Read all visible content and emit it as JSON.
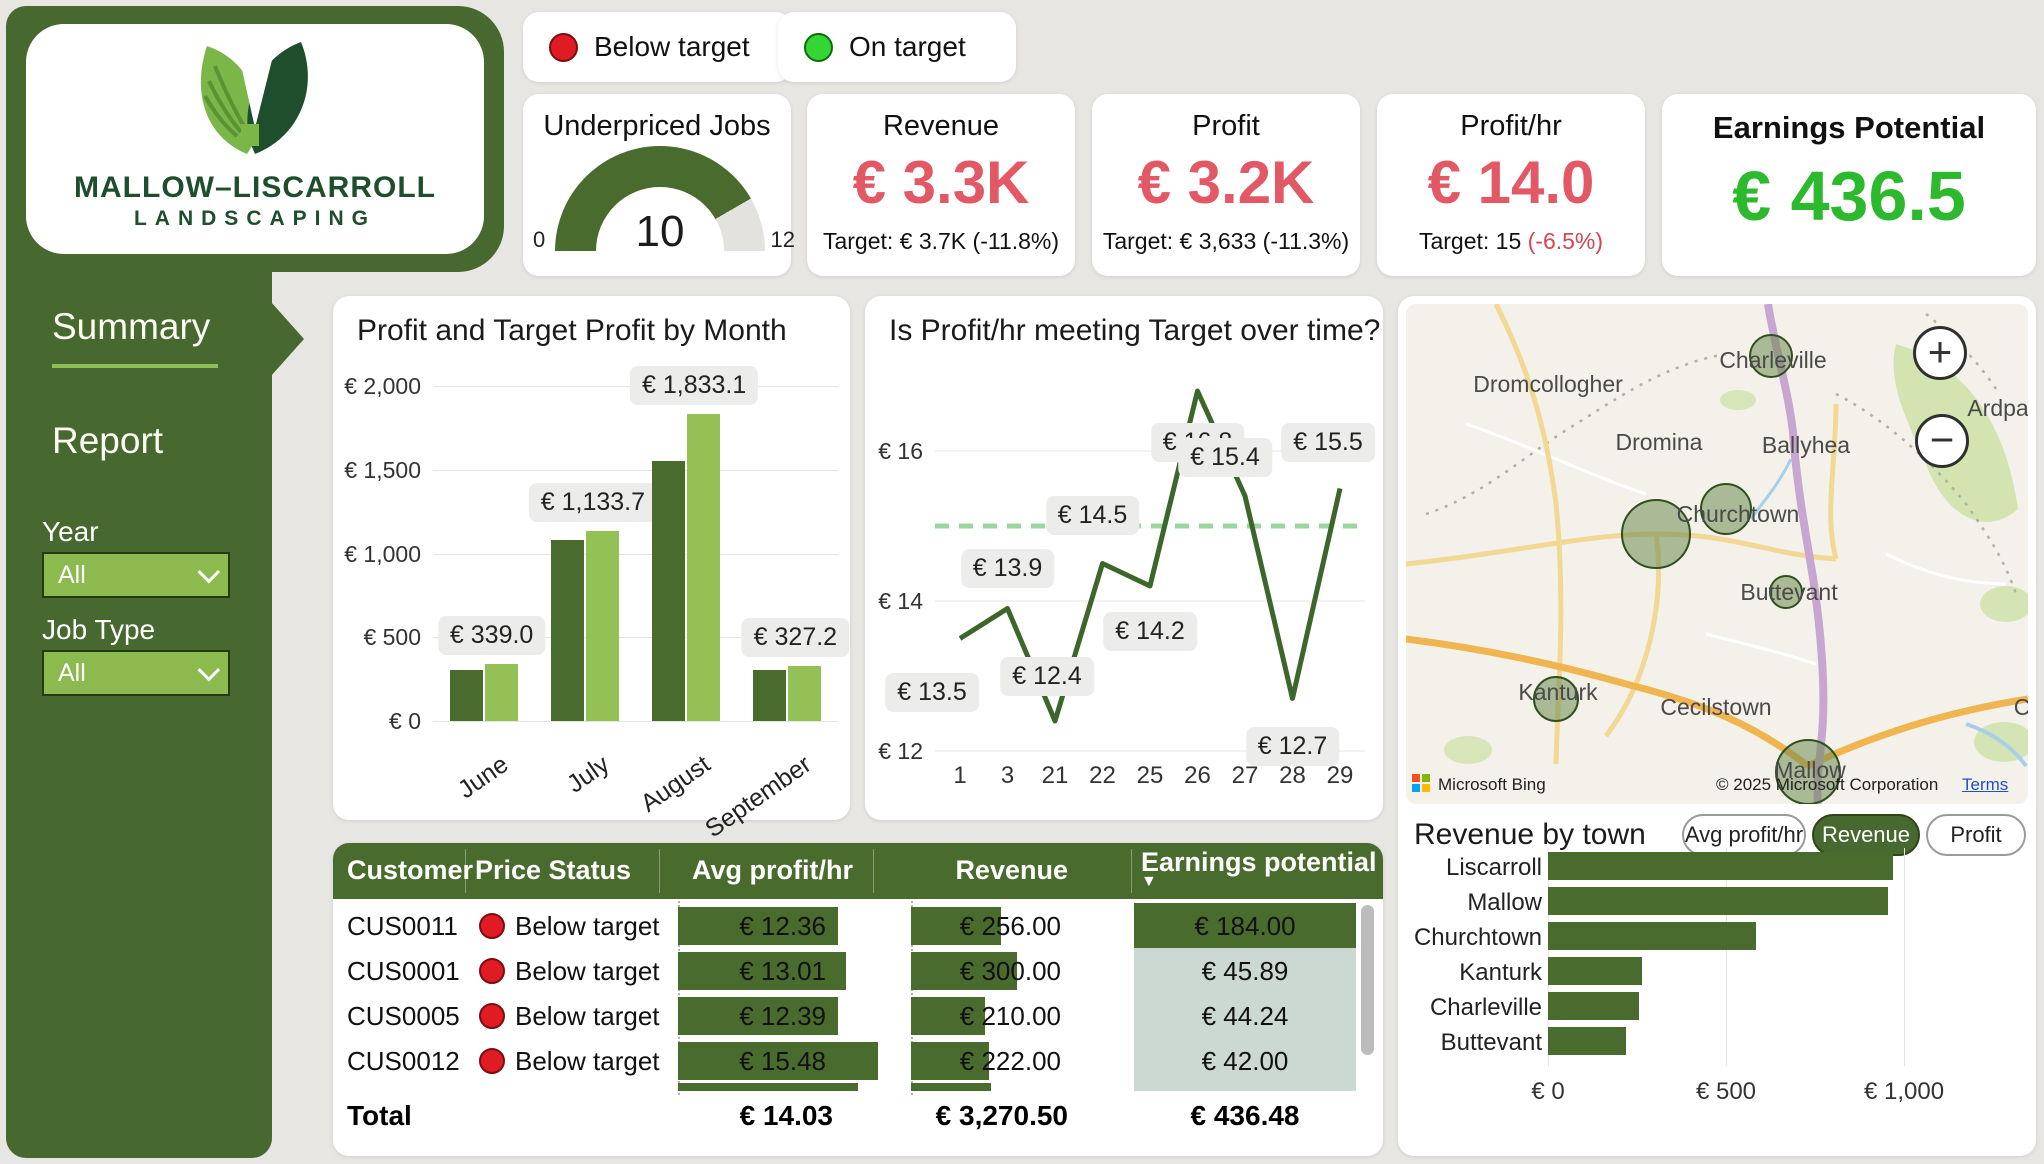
{
  "logo": {
    "line1": "MALLOW–LISCARROLL",
    "line2": "LANDSCAPING"
  },
  "sidebar": {
    "items": [
      {
        "label": "Summary",
        "active": true
      },
      {
        "label": "Report",
        "active": false
      }
    ],
    "filters": [
      {
        "label": "Year",
        "value": "All"
      },
      {
        "label": "Job Type",
        "value": "All"
      }
    ]
  },
  "legend": [
    {
      "label": "Below target",
      "color": "#e01b24",
      "border": "#7d0c12"
    },
    {
      "label": "On target",
      "color": "#33d633",
      "border": "#0e6b0e"
    }
  ],
  "kpis": {
    "gauge": {
      "title": "Underpriced Jobs",
      "value": "10",
      "min": "0",
      "max": "12"
    },
    "cards": [
      {
        "title": "Revenue",
        "value": "€ 3.3K",
        "value_color": "#e25865",
        "target": "Target: € 3.7K ",
        "delta": "(-11.8%)",
        "delta_color": "#111111"
      },
      {
        "title": "Profit",
        "value": "€ 3.2K",
        "value_color": "#e25865",
        "target": "Target: € 3,633 ",
        "delta": "(-11.3%)",
        "delta_color": "#111111"
      },
      {
        "title": "Profit/hr",
        "value": "€ 14.0",
        "value_color": "#e25865",
        "target": "Target: 15 ",
        "delta": "(-6.5%)",
        "delta_color": "#d64550"
      },
      {
        "title": "Earnings Potential",
        "value": "€ 436.5",
        "value_color": "#2db92d",
        "target": "",
        "delta": "",
        "delta_color": "#111111"
      }
    ]
  },
  "chart_data": [
    {
      "type": "bar",
      "title": "Profit and Target Profit by Month",
      "categories": [
        "June",
        "July",
        "August",
        "September"
      ],
      "series": [
        {
          "name": "Profit",
          "values": [
            305,
            1080,
            1555,
            305
          ]
        },
        {
          "name": "Target Profit",
          "values": [
            339.0,
            1133.7,
            1833.1,
            327.2
          ]
        }
      ],
      "data_labels": [
        "€ 339.0",
        "€ 1,133.7",
        "€ 1,833.1",
        "€ 327.2"
      ],
      "ylim": [
        0,
        2000
      ],
      "yticks": [
        {
          "v": 0,
          "label": "€ 0"
        },
        {
          "v": 500,
          "label": "€ 500"
        },
        {
          "v": 1000,
          "label": "€ 1,000"
        },
        {
          "v": 1500,
          "label": "€ 1,500"
        },
        {
          "v": 2000,
          "label": "€ 2,000"
        }
      ]
    },
    {
      "type": "line",
      "title": "Is Profit/hr meeting Target over time?",
      "x": [
        "1",
        "3",
        "21",
        "22",
        "25",
        "26",
        "27",
        "28",
        "29"
      ],
      "values": [
        13.5,
        13.9,
        12.4,
        14.5,
        14.2,
        16.8,
        15.4,
        12.7,
        15.5
      ],
      "labels": [
        "€ 13.5",
        "€ 13.9",
        "€ 12.4",
        "€ 14.5",
        "€ 14.2",
        "€ 16.8",
        "€ 15.4",
        "€ 12.7",
        "€ 15.5"
      ],
      "target_line": 15,
      "ylim": [
        12,
        17
      ],
      "yticks": [
        {
          "v": 12,
          "label": "€ 12"
        },
        {
          "v": 14,
          "label": "€ 14"
        },
        {
          "v": 16,
          "label": "€ 16"
        }
      ]
    },
    {
      "type": "bar",
      "title": "Revenue by town",
      "categories": [
        "Liscarroll",
        "Mallow",
        "Churchtown",
        "Kanturk",
        "Charleville",
        "Buttevant"
      ],
      "values": [
        970,
        955,
        585,
        265,
        255,
        220
      ],
      "xlim": [
        0,
        1070
      ],
      "xticks": [
        {
          "v": 0,
          "label": "€ 0"
        },
        {
          "v": 500,
          "label": "€ 500"
        },
        {
          "v": 1000,
          "label": "€ 1,000"
        }
      ]
    }
  ],
  "map": {
    "towns": [
      "Dromcollogher",
      "Charleville",
      "Ardpa",
      "Dromina",
      "Ballyhea",
      "Churchtown",
      "Buttevant",
      "Kanturk",
      "Cecilstown",
      "Mallow",
      "C"
    ],
    "brand": "Microsoft Bing",
    "copyright": "© 2025 Microsoft Corporation",
    "terms": "Terms",
    "zoom_in": "+",
    "zoom_out": "−",
    "buttons": [
      {
        "label": "Avg profit/hr",
        "selected": false
      },
      {
        "label": "Revenue",
        "selected": true
      },
      {
        "label": "Profit",
        "selected": false
      }
    ]
  },
  "table": {
    "columns": [
      "Customer",
      "Price Status",
      "Avg profit/hr",
      "Revenue",
      "Earnings potential"
    ],
    "sorted_by": "Earnings potential",
    "sort_icon": "▼",
    "rows": [
      {
        "customer": "CUS0011",
        "status": "Below target",
        "avg_label": "€ 12.36",
        "avg": 12.36,
        "rev_label": "€ 256.00",
        "rev": 256.0,
        "ep_label": "€ 184.00",
        "ep_highlight": true
      },
      {
        "customer": "CUS0001",
        "status": "Below target",
        "avg_label": "€ 13.01",
        "avg": 13.01,
        "rev_label": "€ 300.00",
        "rev": 300.0,
        "ep_label": "€ 45.89",
        "ep_highlight": false
      },
      {
        "customer": "CUS0005",
        "status": "Below target",
        "avg_label": "€ 12.39",
        "avg": 12.39,
        "rev_label": "€ 210.00",
        "rev": 210.0,
        "ep_label": "€ 44.24",
        "ep_highlight": false
      },
      {
        "customer": "CUS0012",
        "status": "Below target",
        "avg_label": "€ 15.48",
        "avg": 15.48,
        "rev_label": "€ 222.00",
        "rev": 222.0,
        "ep_label": "€ 42.00",
        "ep_highlight": false
      }
    ],
    "total": {
      "label": "Total",
      "avg": "€ 14.03",
      "rev": "€ 3,270.50",
      "ep": "€ 436.48"
    }
  }
}
